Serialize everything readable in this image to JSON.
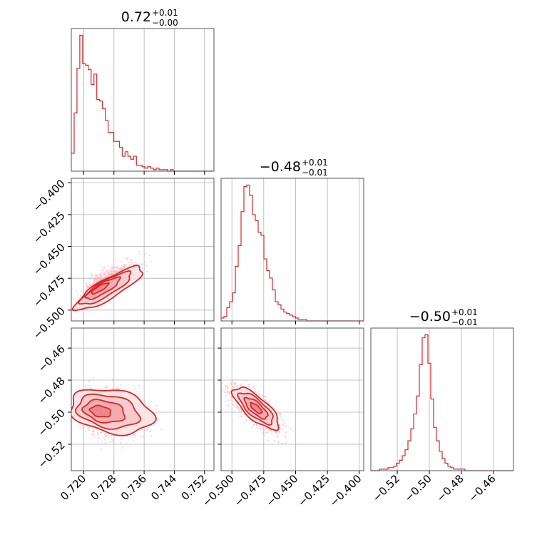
{
  "chart_data": {
    "type": "corner",
    "color": "#d62728",
    "fill_color": "#f4c7c9",
    "scatter_color": "#f3b4b7",
    "grid": true,
    "parameters": [
      {
        "range": [
          0.7167,
          0.7545
        ],
        "ticks": [
          "0.720",
          "0.728",
          "0.736",
          "0.744",
          "0.752"
        ],
        "tick_values": [
          0.72,
          0.728,
          0.736,
          0.744,
          0.752
        ],
        "title": {
          "value": "0.72",
          "upper": "+0.01",
          "lower": "−0.00"
        }
      },
      {
        "range": [
          -0.5085,
          -0.3965
        ],
        "ticks": [
          "−0.500",
          "−0.475",
          "−0.450",
          "−0.425",
          "−0.400"
        ],
        "tick_values": [
          -0.5,
          -0.475,
          -0.45,
          -0.425,
          -0.4
        ],
        "title": {
          "value": "−0.48",
          "upper": "+0.01",
          "lower": "−0.01"
        }
      },
      {
        "range": [
          -0.5365,
          -0.4475
        ],
        "ticks": [
          "−0.52",
          "−0.50",
          "−0.48",
          "−0.46"
        ],
        "tick_values": [
          -0.52,
          -0.5,
          -0.48,
          -0.46
        ],
        "title": {
          "value": "−0.50",
          "upper": "+0.01",
          "lower": "−0.01"
        }
      }
    ],
    "histograms": [
      {
        "param": 0,
        "bin_start": 0.7167,
        "bin_width": 0.00075,
        "counts": [
          0.12,
          0.39,
          0.69,
          0.91,
          0.72,
          0.71,
          0.68,
          0.58,
          0.65,
          0.48,
          0.47,
          0.42,
          0.34,
          0.26,
          0.26,
          0.2,
          0.2,
          0.16,
          0.1,
          0.13,
          0.1,
          0.08,
          0.1,
          0.04,
          0.04,
          0.03,
          0.02,
          0.03,
          0.02,
          0.01,
          0.02,
          0.01,
          0.01,
          0.01,
          0.0,
          0.01,
          0.0,
          0.0,
          0.0,
          0.0,
          0.0,
          0.0,
          0.0,
          0.0,
          0.0,
          0.0,
          0.0,
          0.0,
          0.0,
          0.0
        ]
      },
      {
        "param": 1,
        "bin_start": -0.5085,
        "bin_width": 0.00224,
        "counts": [
          0.02,
          0.03,
          0.09,
          0.13,
          0.19,
          0.37,
          0.51,
          0.74,
          0.91,
          0.92,
          0.85,
          0.72,
          0.68,
          0.6,
          0.58,
          0.42,
          0.34,
          0.29,
          0.21,
          0.13,
          0.11,
          0.08,
          0.06,
          0.05,
          0.04,
          0.03,
          0.02,
          0.01,
          0.01,
          0.01,
          0.0,
          0.0,
          0.0,
          0.0,
          0.0,
          0.0,
          0.0,
          0.0,
          0.0,
          0.0,
          0.0,
          0.0,
          0.0,
          0.0,
          0.0,
          0.0,
          0.0,
          0.0,
          0.0,
          0.0
        ]
      },
      {
        "param": 2,
        "bin_start": -0.5365,
        "bin_width": 0.00178,
        "counts": [
          0.0,
          0.0,
          0.0,
          0.01,
          0.01,
          0.01,
          0.02,
          0.02,
          0.03,
          0.05,
          0.07,
          0.1,
          0.14,
          0.2,
          0.28,
          0.38,
          0.5,
          0.71,
          0.89,
          0.91,
          0.72,
          0.48,
          0.29,
          0.2,
          0.13,
          0.08,
          0.05,
          0.03,
          0.02,
          0.01,
          0.01,
          0.01,
          0.01,
          0.0,
          0.0,
          0.0,
          0.0,
          0.0,
          0.0,
          0.0,
          0.0,
          0.0,
          0.0,
          0.0,
          0.0,
          0.0,
          0.0,
          0.0,
          0.0,
          0.0
        ]
      }
    ],
    "correlations": [
      {
        "x": 0,
        "y": 1,
        "mean": [
          0.7235,
          -0.483
        ],
        "std": [
          0.0045,
          0.0085
        ],
        "rho": 0.85,
        "n": 1400
      },
      {
        "x": 0,
        "y": 2,
        "mean": [
          0.7235,
          -0.4995
        ],
        "std": [
          0.0055,
          0.007
        ],
        "rho": -0.25,
        "n": 1100
      },
      {
        "x": 1,
        "y": 2,
        "mean": [
          -0.481,
          -0.4975
        ],
        "std": [
          0.009,
          0.0065
        ],
        "rho": -0.75,
        "n": 1400
      }
    ]
  }
}
